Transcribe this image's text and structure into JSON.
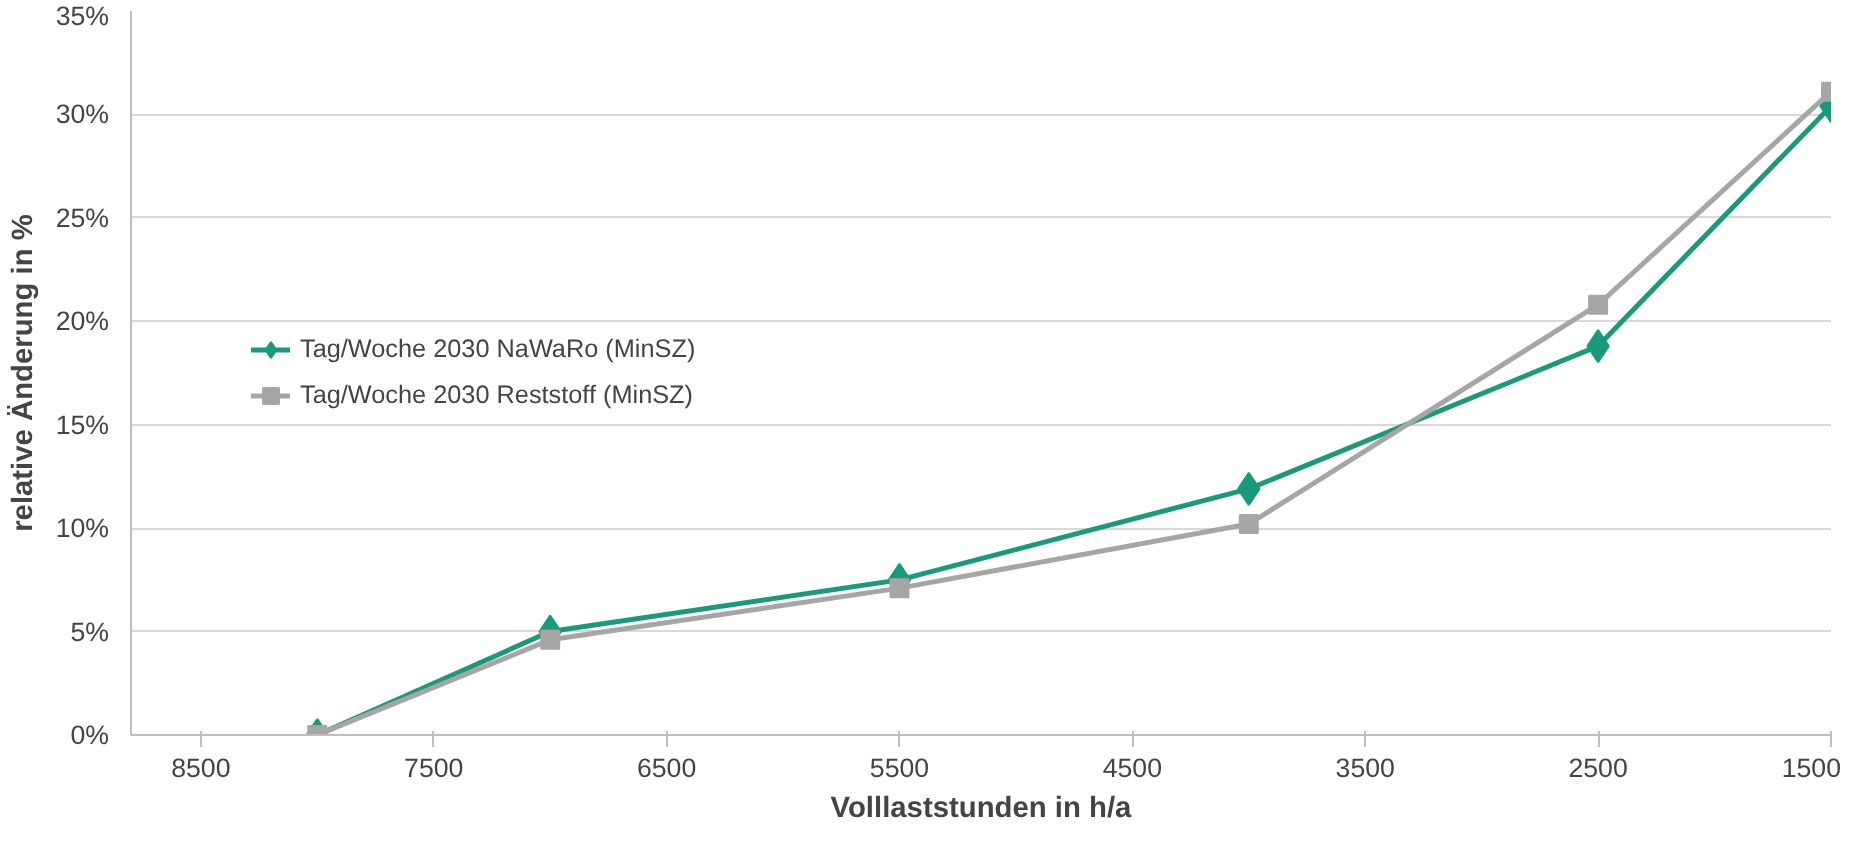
{
  "chart_data": {
    "type": "line",
    "xlabel": "Volllaststunden in h/a",
    "ylabel": "relative Änderung in %",
    "xlim": [
      8800,
      1500
    ],
    "xticks": [
      8500,
      7500,
      6500,
      5500,
      4500,
      3500,
      2500,
      1500
    ],
    "ylim": [
      0,
      35
    ],
    "yticks": [
      {
        "value": 0,
        "label": "0%"
      },
      {
        "value": 5,
        "label": "5%"
      },
      {
        "value": 10,
        "label": "10%"
      },
      {
        "value": 15,
        "label": "15%"
      },
      {
        "value": 20,
        "label": "20%"
      },
      {
        "value": 25,
        "label": "25%"
      },
      {
        "value": 30,
        "label": "30%"
      },
      {
        "value": 35,
        "label": "35%"
      }
    ],
    "grid": "y",
    "legend": "left",
    "line_style": "solid",
    "series": [
      {
        "name": "Tag/Woche 2030 NaWaRo (MinSZ)",
        "color": "#1a9a7a",
        "marker": "diamond",
        "x": [
          8000,
          7000,
          5500,
          4000,
          2500,
          1500
        ],
        "values": [
          0,
          5.0,
          7.5,
          11.9,
          18.8,
          30.4
        ]
      },
      {
        "name": "Tag/Woche 2030 Reststoff (MinSZ)",
        "color": "#a6a6a6",
        "marker": "square",
        "x": [
          8000,
          7000,
          5500,
          4000,
          2500,
          1500
        ],
        "values": [
          0,
          4.6,
          7.1,
          10.2,
          20.8,
          31.1
        ]
      }
    ]
  }
}
